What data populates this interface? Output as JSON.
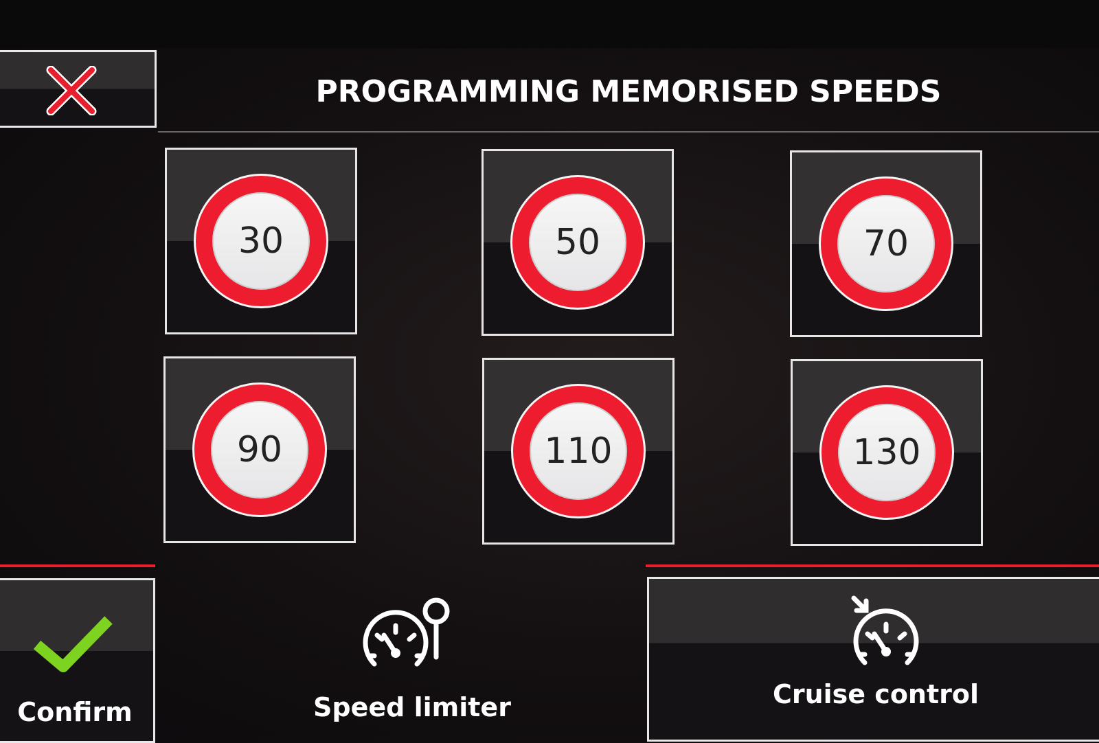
{
  "header": {
    "title": "PROGRAMMING MEMORISED SPEEDS",
    "close_icon": "close-x-icon",
    "close_color": "#e8202e"
  },
  "speeds": [
    {
      "value": "30"
    },
    {
      "value": "50"
    },
    {
      "value": "70"
    },
    {
      "value": "90"
    },
    {
      "value": "110"
    },
    {
      "value": "130"
    }
  ],
  "footer": {
    "confirm_label": "Confirm",
    "confirm_icon": "checkmark-icon",
    "confirm_color": "#7ed321",
    "speed_limiter_label": "Speed limiter",
    "speed_limiter_icon": "speedometer-limiter-icon",
    "cruise_control_label": "Cruise control",
    "cruise_control_icon": "speedometer-cruise-icon",
    "accent_color": "#e8202e"
  }
}
